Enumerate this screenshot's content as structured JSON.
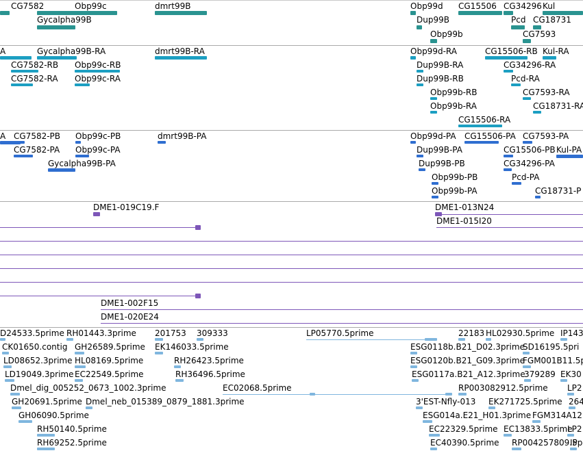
{
  "colors": {
    "gene": "#2a9390",
    "mrna": "#1c9fc2",
    "protein": "#2f6ed0",
    "clone": "#7d56b8",
    "est": "#7fb6de",
    "separator": "#a9a9a9"
  },
  "tracks": {
    "genes": {
      "labels": [
        "CG7582",
        "Obp99c",
        "dmrt99B",
        "Gycalpha99B",
        "Obp99d",
        "CG15506",
        "CG34296",
        "Kul",
        "Dup99B",
        "Pcd",
        "CG18731",
        "Obp99b",
        "CG7593"
      ]
    },
    "transcripts": {
      "labels": [
        "A",
        "Gycalpha99B-RA",
        "dmrt99B-RA",
        "CG7582-RB",
        "Obp99c-RB",
        "CG7582-RA",
        "Obp99c-RA",
        "Obp99d-RA",
        "CG15506-RB",
        "Kul-RA",
        "Dup99B-RA",
        "CG34296-RA",
        "Dup99B-RB",
        "Pcd-RA",
        "Obp99b-RB",
        "CG7593-RA",
        "Obp99b-RA",
        "CG18731-RA",
        "CG15506-RA"
      ]
    },
    "proteins": {
      "labels": [
        "A",
        "CG7582-PB",
        "Obp99c-PB",
        "dmrt99B-PA",
        "CG7582-PA",
        "Obp99c-PA",
        "Gycalpha99B-PA",
        "Obp99d-PA",
        "CG15506-PA",
        "CG7593-PA",
        "Dup99B-PA",
        "CG15506-PB",
        "Kul-PA",
        "Dup99B-PB",
        "CG34296-PA",
        "Obp99b-PB",
        "Pcd-PA",
        "Obp99b-PA",
        "CG18731-P"
      ]
    },
    "clones": {
      "labels": [
        "DME1-019C19.F",
        "DME1-013N24",
        "DME1-015I20",
        "DME1-002F15",
        "DME1-020E24"
      ]
    },
    "ests": {
      "labels": [
        "D24533.5prime",
        "RH01443.3prime",
        "201753",
        "309333",
        "LP05770.5prime",
        "22183",
        "HL02930.5prime",
        "IP143",
        "CK01650.contig",
        "GH26589.5prime",
        "EK146033.5prime",
        "ESG0118b.B21_D02.3prime",
        "SD16195.5pri",
        "LD08652.3prime",
        "HL08169.5prime",
        "RH26423.5prime",
        "ESG0120b.B21_G09.3prime",
        "FGM001B11.5p",
        "LD19049.3prime",
        "EC22549.5prime",
        "RH36496.5prime",
        "ESG0117a.B21_A12.3prime",
        "379289",
        "EK30",
        "Dmel_dig_005252_0673_1002.3prime",
        "EC02068.5prime",
        "RP003082912.5prime",
        "LP2",
        "GH20691.5prime",
        "Dmel_neb_015389_0879_1881.3prime",
        "3'EST-Nfly-013",
        "EK271725.5prime",
        "264",
        "GH06090.5prime",
        "ESG014a.E21_H01.3prime",
        "FGM314A12",
        "RH50140.5prime",
        "EC22329.5prime",
        "EC13833.5prime",
        "LP2",
        "RH69252.5prime",
        "EC40390.5prime",
        "RP004257809.5p",
        "IP"
      ]
    }
  }
}
